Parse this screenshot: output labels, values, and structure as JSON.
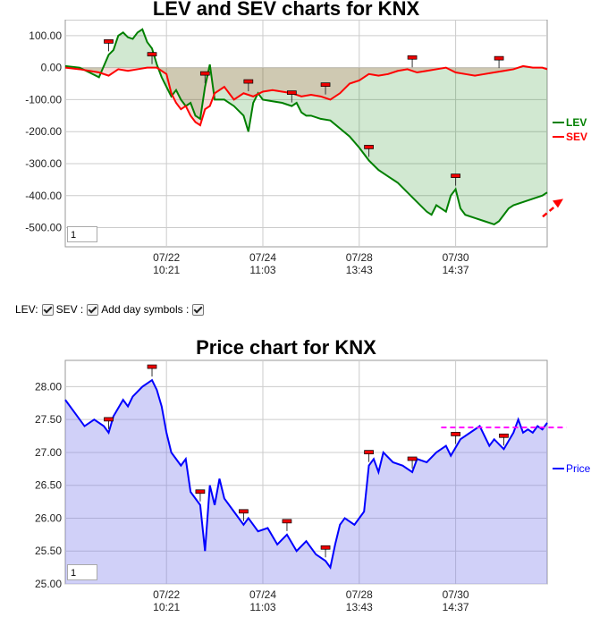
{
  "lev_chart": {
    "title": "LEV and SEV charts for KNX",
    "zoom_value": "1",
    "legend": [
      {
        "name": "LEV",
        "color": "#008000"
      },
      {
        "name": "SEV",
        "color": "#ff0000"
      }
    ]
  },
  "controls": {
    "lev_label": "LEV:",
    "sev_label": "SEV :",
    "day_symbols_label": "Add day symbols :",
    "lev_checked": true,
    "sev_checked": true,
    "day_symbols_checked": true
  },
  "price_chart": {
    "title": "Price chart for KNX",
    "zoom_value": "1",
    "legend": [
      {
        "name": "Price",
        "color": "#0000ff"
      }
    ]
  },
  "chart_data": [
    {
      "type": "line",
      "title": "LEV and SEV charts for KNX",
      "ylim": [
        -560,
        150
      ],
      "yticks": [
        "100.00",
        "0.00",
        "-100.00",
        "-200.00",
        "-300.00",
        "-400.00",
        "-500.00"
      ],
      "ytick_values": [
        100,
        0,
        -100,
        -200,
        -300,
        -400,
        -500
      ],
      "xlim": [
        0,
        100
      ],
      "xticks": [
        {
          "x": 21,
          "date": "07/22",
          "time": "10:21"
        },
        {
          "x": 41,
          "date": "07/24",
          "time": "11:03"
        },
        {
          "x": 61,
          "date": "07/28",
          "time": "13:43"
        },
        {
          "x": 81,
          "date": "07/30",
          "time": "14:37"
        }
      ],
      "series": [
        {
          "name": "LEV",
          "color": "#008000",
          "x": [
            0,
            3,
            5,
            7,
            9,
            10,
            11,
            12,
            13,
            14,
            15,
            16,
            17,
            18,
            19,
            20,
            21,
            22,
            23,
            24,
            25,
            26,
            27,
            28,
            29,
            30,
            31,
            33,
            35,
            37,
            38,
            39,
            40,
            41,
            43,
            45,
            47,
            48,
            49,
            50,
            51,
            53,
            55,
            57,
            59,
            61,
            63,
            65,
            67,
            69,
            71,
            73,
            75,
            76,
            77,
            78,
            79,
            80,
            81,
            82,
            83,
            85,
            87,
            89,
            90,
            91,
            92,
            93,
            95,
            97,
            99,
            100
          ],
          "y": [
            5,
            0,
            -15,
            -30,
            40,
            55,
            100,
            110,
            95,
            90,
            110,
            120,
            80,
            60,
            10,
            -30,
            -60,
            -90,
            -70,
            -100,
            -120,
            -110,
            -150,
            -160,
            -60,
            10,
            -100,
            -100,
            -120,
            -150,
            -200,
            -110,
            -80,
            -100,
            -105,
            -110,
            -120,
            -110,
            -140,
            -150,
            -150,
            -160,
            -165,
            -190,
            -215,
            -250,
            -290,
            -320,
            -340,
            -360,
            -390,
            -420,
            -450,
            -460,
            -430,
            -440,
            -450,
            -400,
            -380,
            -440,
            -460,
            -470,
            -480,
            -490,
            -480,
            -460,
            -440,
            -430,
            -420,
            -410,
            -400,
            -390
          ]
        },
        {
          "name": "SEV",
          "color": "#ff0000",
          "x": [
            0,
            3,
            5,
            7,
            9,
            11,
            13,
            15,
            17,
            19,
            21,
            22,
            23,
            24,
            25,
            26,
            27,
            28,
            29,
            30,
            31,
            33,
            35,
            37,
            39,
            41,
            43,
            45,
            47,
            49,
            51,
            53,
            55,
            57,
            59,
            61,
            63,
            65,
            67,
            69,
            71,
            73,
            75,
            77,
            79,
            81,
            83,
            85,
            87,
            89,
            91,
            93,
            95,
            97,
            99,
            100
          ],
          "y": [
            0,
            -5,
            -10,
            -15,
            -25,
            -5,
            -10,
            -5,
            0,
            0,
            -20,
            -80,
            -110,
            -130,
            -120,
            -150,
            -170,
            -180,
            -130,
            -120,
            -80,
            -60,
            -100,
            -80,
            -90,
            -75,
            -70,
            -75,
            -80,
            -90,
            -85,
            -90,
            -100,
            -80,
            -50,
            -40,
            -20,
            -25,
            -20,
            -10,
            -5,
            -15,
            -10,
            -5,
            0,
            -15,
            -20,
            -25,
            -20,
            -15,
            -10,
            -5,
            5,
            0,
            0,
            -5
          ]
        }
      ],
      "annotations": {
        "markers_x": [
          9,
          18,
          29,
          38,
          47,
          54,
          63,
          72,
          81,
          90
        ],
        "arrow": {
          "direction": "up-right",
          "color": "#ff0000",
          "style": "dashed"
        }
      }
    },
    {
      "type": "area",
      "title": "Price chart for KNX",
      "ylim": [
        25.0,
        28.4
      ],
      "yticks": [
        "28.00",
        "27.50",
        "27.00",
        "26.50",
        "26.00",
        "25.50",
        "25.00"
      ],
      "ytick_values": [
        28.0,
        27.5,
        27.0,
        26.5,
        26.0,
        25.5,
        25.0
      ],
      "xlim": [
        0,
        100
      ],
      "xticks": [
        {
          "x": 21,
          "date": "07/22",
          "time": "10:21"
        },
        {
          "x": 41,
          "date": "07/24",
          "time": "11:03"
        },
        {
          "x": 61,
          "date": "07/28",
          "time": "13:43"
        },
        {
          "x": 81,
          "date": "07/30",
          "time": "14:37"
        }
      ],
      "series": [
        {
          "name": "Price",
          "color": "#0000ff",
          "x": [
            0,
            2,
            4,
            6,
            8,
            9,
            10,
            12,
            13,
            14,
            16,
            18,
            19,
            20,
            21,
            22,
            24,
            25,
            26,
            28,
            29,
            30,
            31,
            32,
            33,
            35,
            37,
            38,
            40,
            42,
            44,
            46,
            48,
            50,
            52,
            54,
            55,
            56,
            57,
            58,
            60,
            62,
            63,
            64,
            65,
            66,
            68,
            70,
            72,
            73,
            75,
            77,
            79,
            80,
            82,
            84,
            86,
            88,
            89,
            91,
            93,
            94,
            95,
            96,
            97,
            98,
            99,
            100
          ],
          "y": [
            27.8,
            27.6,
            27.4,
            27.5,
            27.4,
            27.3,
            27.55,
            27.8,
            27.7,
            27.85,
            28.0,
            28.1,
            27.95,
            27.7,
            27.3,
            27.0,
            26.8,
            26.9,
            26.4,
            26.2,
            25.5,
            26.5,
            26.2,
            26.6,
            26.3,
            26.1,
            25.9,
            26.0,
            25.8,
            25.85,
            25.6,
            25.75,
            25.5,
            25.65,
            25.45,
            25.35,
            25.25,
            25.6,
            25.9,
            26.0,
            25.9,
            26.1,
            26.8,
            26.9,
            26.7,
            27.0,
            26.85,
            26.8,
            26.7,
            26.9,
            26.85,
            27.0,
            27.1,
            26.95,
            27.2,
            27.3,
            27.4,
            27.1,
            27.2,
            27.05,
            27.3,
            27.5,
            27.3,
            27.35,
            27.3,
            27.4,
            27.35,
            27.45
          ]
        }
      ],
      "annotations": {
        "markers_x": [
          9,
          18,
          28,
          37,
          46,
          54,
          63,
          72,
          81,
          91
        ],
        "reference_line": {
          "y": 27.38,
          "color": "#ff00ff",
          "style": "dashed"
        }
      }
    }
  ]
}
